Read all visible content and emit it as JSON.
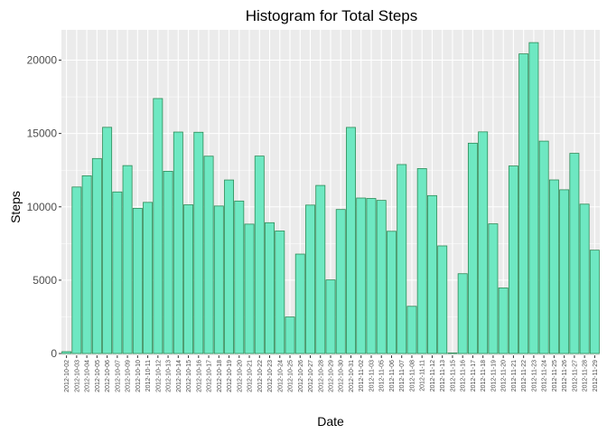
{
  "chart_data": {
    "type": "bar",
    "title": "Histogram for Total Steps",
    "xlabel": "Date",
    "ylabel": "Steps",
    "ylim": [
      0,
      22300
    ],
    "yticks": [
      0,
      5000,
      10000,
      15000,
      20000
    ],
    "grid": true,
    "colors": {
      "bar_fill": "#6ee8c2",
      "bar_stroke": "#2e8b57",
      "panel_bg": "#ebebeb",
      "grid_major": "#ffffff"
    },
    "categories": [
      "2012-10-02",
      "2012-10-03",
      "2012-10-04",
      "2012-10-05",
      "2012-10-06",
      "2012-10-07",
      "2012-10-09",
      "2012-10-10",
      "2012-10-11",
      "2012-10-12",
      "2012-10-13",
      "2012-10-14",
      "2012-10-15",
      "2012-10-16",
      "2012-10-17",
      "2012-10-18",
      "2012-10-19",
      "2012-10-20",
      "2012-10-21",
      "2012-10-22",
      "2012-10-23",
      "2012-10-24",
      "2012-10-25",
      "2012-10-26",
      "2012-10-27",
      "2012-10-28",
      "2012-10-29",
      "2012-10-30",
      "2012-10-31",
      "2012-11-02",
      "2012-11-03",
      "2012-11-05",
      "2012-11-06",
      "2012-11-07",
      "2012-11-08",
      "2012-11-11",
      "2012-11-12",
      "2012-11-13",
      "2012-11-15",
      "2012-11-16",
      "2012-11-17",
      "2012-11-18",
      "2012-11-19",
      "2012-11-20",
      "2012-11-21",
      "2012-11-22",
      "2012-11-23",
      "2012-11-24",
      "2012-11-25",
      "2012-11-26",
      "2012-11-27",
      "2012-11-28",
      "2012-11-29"
    ],
    "values": [
      126,
      11352,
      12116,
      13294,
      15420,
      11015,
      12811,
      9900,
      10304,
      17382,
      12426,
      15098,
      10139,
      15084,
      13452,
      10056,
      11829,
      10395,
      8821,
      13460,
      8918,
      8355,
      2492,
      6778,
      10119,
      11458,
      5018,
      9819,
      15414,
      10600,
      10571,
      10439,
      8334,
      12883,
      3219,
      12608,
      10765,
      7336,
      41,
      5441,
      14339,
      15110,
      8841,
      4472,
      12787,
      20427,
      21194,
      14478,
      11834,
      11162,
      13646,
      10183,
      7047
    ]
  }
}
